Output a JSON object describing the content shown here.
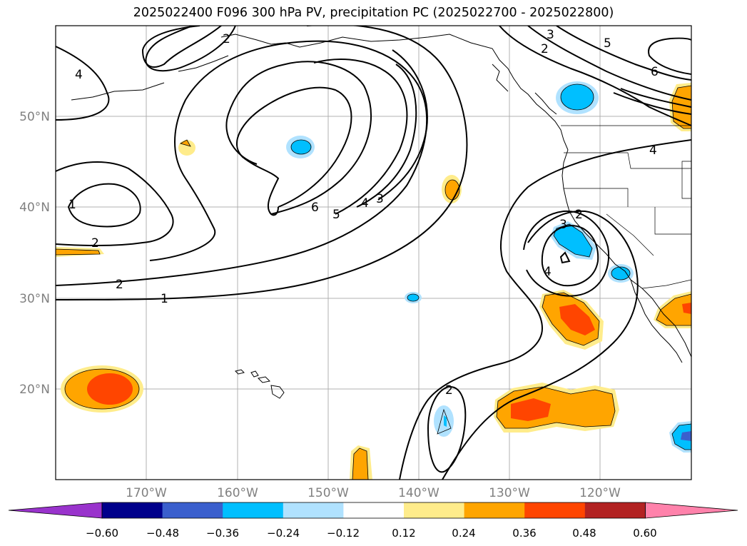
{
  "title": "2025022400 F096 300 hPa PV, precipitation PC (2025022700 - 2025022800)",
  "lat_ticks": [
    "50°N",
    "40°N",
    "30°N",
    "20°N"
  ],
  "lon_ticks": [
    "170°W",
    "160°W",
    "150°W",
    "140°W",
    "130°W",
    "120°W"
  ],
  "contour_labels": [
    "4",
    "2",
    "3",
    "2",
    "5",
    "6",
    "1",
    "2",
    "2",
    "1",
    "6",
    "5",
    "4",
    "3",
    "2",
    "3",
    "4",
    "2",
    "4"
  ],
  "colorbar": {
    "tick_labels": [
      "−0.60",
      "−0.48",
      "−0.36",
      "−0.24",
      "−0.12",
      "0.12",
      "0.24",
      "0.36",
      "0.48",
      "0.60"
    ],
    "colors": [
      "#9933cc",
      "#00008b",
      "#3a5fcd",
      "#00bfff",
      "#b0e2ff",
      "#ffffff",
      "#ffec8b",
      "#ffa500",
      "#ff4500",
      "#b22222",
      "#ff82ab"
    ]
  },
  "legend_symbols": {
    "pv": "contour-lines",
    "precip": "filled-shading"
  }
}
